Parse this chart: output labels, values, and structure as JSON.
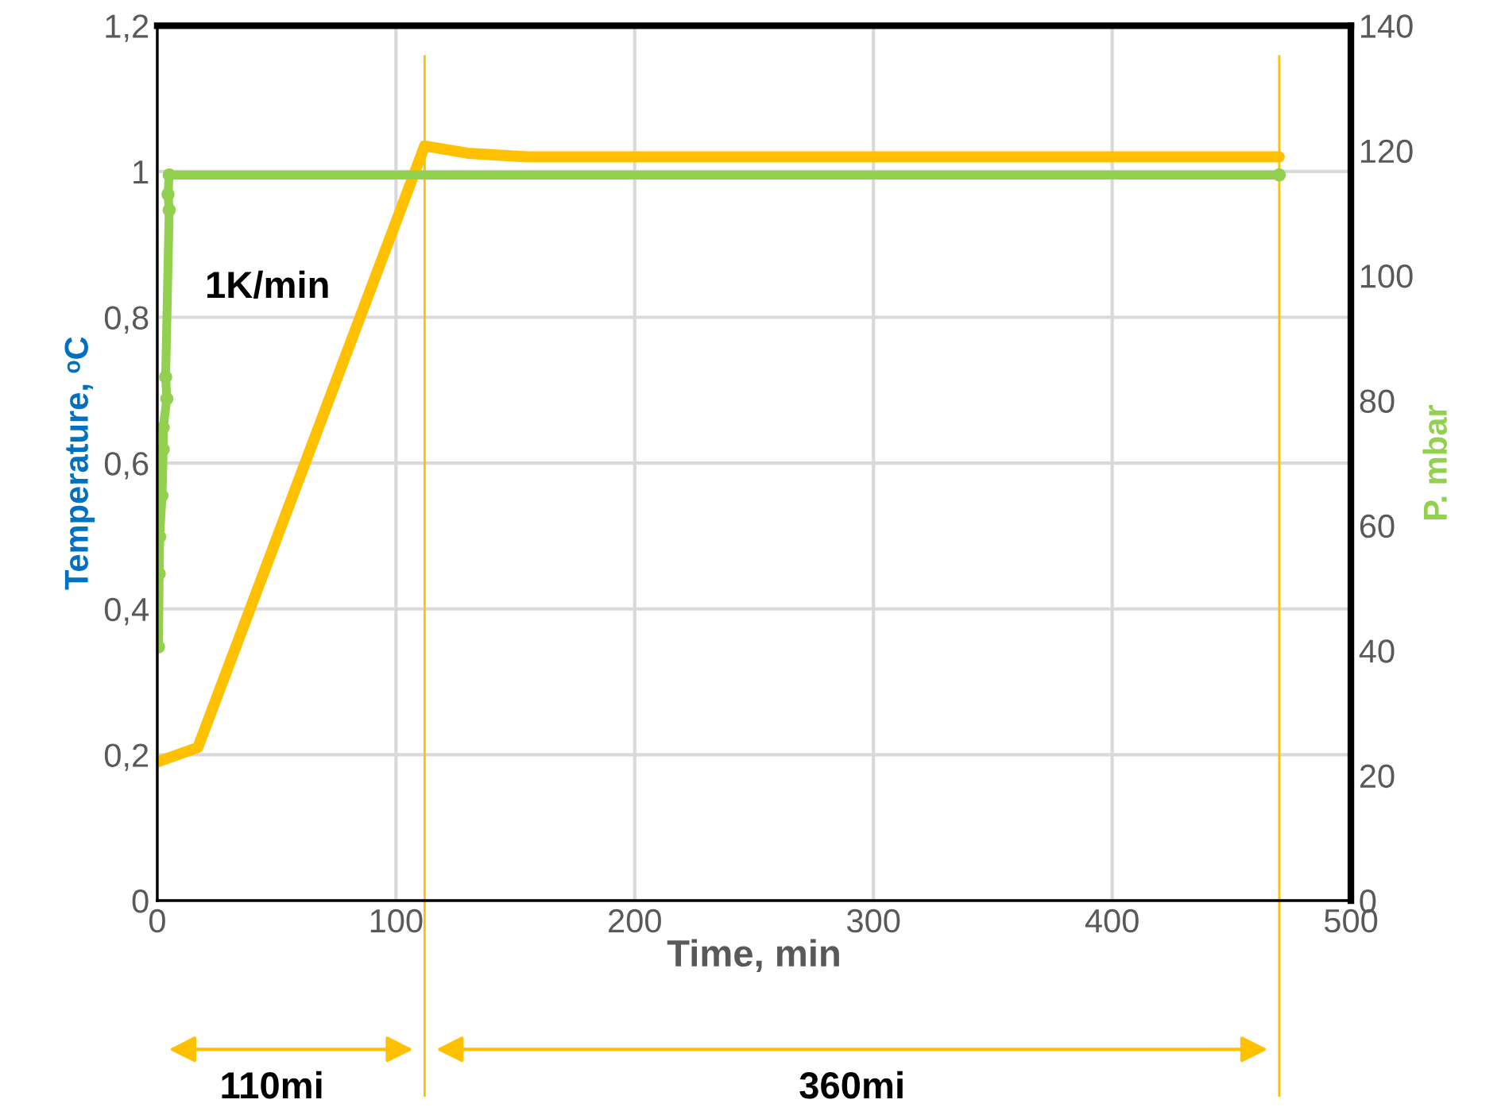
{
  "chart_data": {
    "type": "line",
    "xlabel": "Time, min",
    "ylabel": "Temperature, ᵒC",
    "y2label": "P. mbar",
    "xlim": [
      0,
      500
    ],
    "xticks": [
      0,
      100,
      200,
      300,
      400,
      500
    ],
    "ylim": [
      0,
      1.2
    ],
    "yticks": [
      {
        "value": 0,
        "label": "0"
      },
      {
        "value": 0.2,
        "label": "0,2"
      },
      {
        "value": 0.4,
        "label": "0,4"
      },
      {
        "value": 0.6,
        "label": "0,6"
      },
      {
        "value": 0.8,
        "label": "0,8"
      },
      {
        "value": 1,
        "label": "1"
      },
      {
        "value": 1.2,
        "label": "1,2"
      }
    ],
    "y2lim": [
      0,
      140
    ],
    "y2ticks": [
      0,
      20,
      40,
      60,
      80,
      100,
      120,
      140
    ],
    "grid": true,
    "series": [
      {
        "color": "#ffc000",
        "axis": "y",
        "marker": "none",
        "x": [
          0,
          17,
          112,
          130,
          155,
          470
        ],
        "values": [
          0.19,
          0.21,
          1.035,
          1.025,
          1.02,
          1.02
        ]
      },
      {
        "color": "#92d050",
        "axis": "y2",
        "marker": "circle",
        "x": [
          0.5,
          0.8,
          1,
          2,
          2.5,
          2.5,
          4,
          3.5,
          5,
          4.5,
          5,
          470
        ],
        "values": [
          40.6,
          52.3,
          58.2,
          64.8,
          72.2,
          75.7,
          80.3,
          83.8,
          110.5,
          113,
          116.1,
          116.1
        ]
      }
    ],
    "ref_lines": [
      {
        "axis": "x",
        "value": 112,
        "color": "#ffc000"
      },
      {
        "axis": "x",
        "value": 470,
        "color": "#ffc000"
      }
    ],
    "annotations": [
      "1K/min",
      "110mi",
      "360mi"
    ]
  }
}
